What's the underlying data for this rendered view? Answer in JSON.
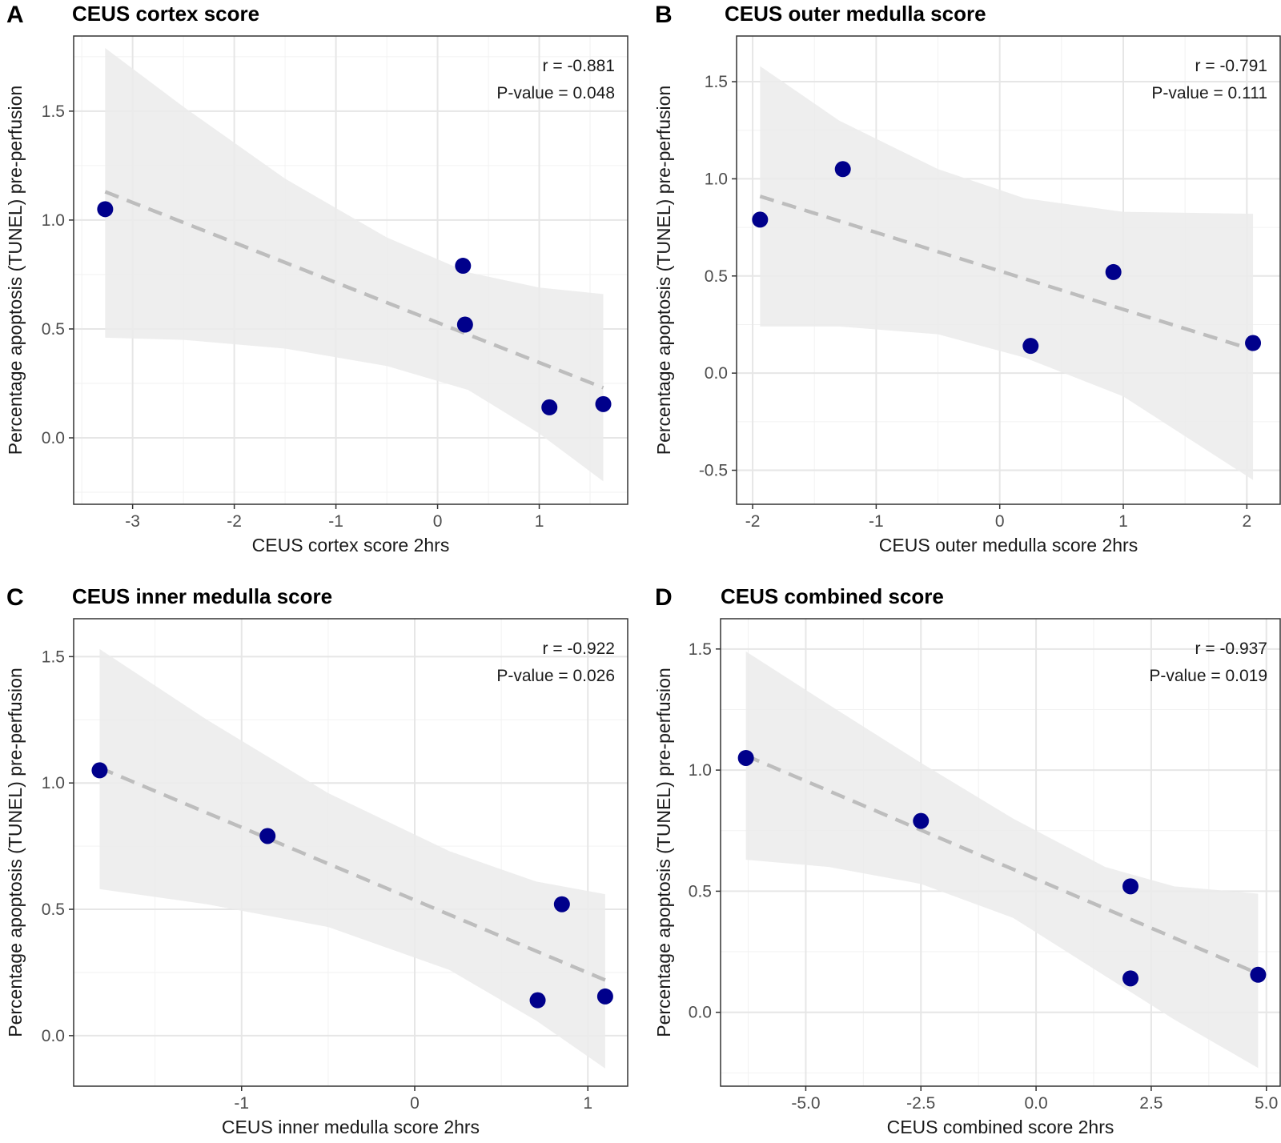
{
  "colors": {
    "point": "#00008b",
    "band": "#ebebeb",
    "trend": "#bdbdbd",
    "grid_major": "#e6e6e6",
    "grid_minor": "#f2f2f2",
    "frame": "#333333"
  },
  "chart_data": [
    {
      "type": "scatter",
      "letter": "A",
      "title": "CEUS cortex score",
      "xlabel": "CEUS cortex score 2hrs",
      "ylabel": "Percentage apoptosis (TUNEL) pre-perfusion",
      "xlim": [
        -3.58,
        1.87
      ],
      "ylim": [
        -0.305,
        1.845
      ],
      "xticks": [
        -3,
        -2,
        -1,
        0,
        1
      ],
      "xtick_labels": [
        "-3",
        "-2",
        "-1",
        "0",
        "1"
      ],
      "yticks": [
        0.0,
        0.5,
        1.0,
        1.5
      ],
      "ytick_labels": [
        "0.0",
        "0.5",
        "1.0",
        "1.5"
      ],
      "x": [
        -3.27,
        0.25,
        0.27,
        1.1,
        1.63
      ],
      "y": [
        1.05,
        0.79,
        0.52,
        0.14,
        0.155
      ],
      "trend": {
        "x": [
          -3.27,
          1.63
        ],
        "y": [
          1.13,
          0.23
        ]
      },
      "band_upper": [
        [
          -3.27,
          1.79
        ],
        [
          -2.5,
          1.52
        ],
        [
          -1.5,
          1.19
        ],
        [
          -0.5,
          0.92
        ],
        [
          0.3,
          0.76
        ],
        [
          1.0,
          0.69
        ],
        [
          1.63,
          0.66
        ]
      ],
      "band_lower": [
        [
          -3.27,
          0.46
        ],
        [
          -2.5,
          0.45
        ],
        [
          -1.5,
          0.41
        ],
        [
          -0.5,
          0.33
        ],
        [
          0.3,
          0.22
        ],
        [
          1.0,
          0.02
        ],
        [
          1.63,
          -0.2
        ]
      ],
      "annotation": [
        "r = -0.881",
        "P-value = 0.048"
      ],
      "grid": true
    },
    {
      "type": "scatter",
      "letter": "B",
      "title": "CEUS outer medulla score",
      "xlabel": "CEUS outer medulla score 2hrs",
      "ylabel": "Percentage apoptosis (TUNEL) pre-perfusion",
      "xlim": [
        -2.13,
        2.27
      ],
      "ylim": [
        -0.675,
        1.735
      ],
      "xticks": [
        -2,
        -1,
        0,
        1,
        2
      ],
      "xtick_labels": [
        "-2",
        "-1",
        "0",
        "1",
        "2"
      ],
      "yticks": [
        -0.5,
        0.0,
        0.5,
        1.0,
        1.5
      ],
      "ytick_labels": [
        "-0.5",
        "0.0",
        "0.5",
        "1.0",
        "1.5"
      ],
      "x": [
        -1.94,
        -1.27,
        0.25,
        0.92,
        2.05
      ],
      "y": [
        0.79,
        1.05,
        0.14,
        0.52,
        0.155
      ],
      "trend": {
        "x": [
          -1.94,
          2.05
        ],
        "y": [
          0.91,
          0.12
        ]
      },
      "band_upper": [
        [
          -1.94,
          1.58
        ],
        [
          -1.3,
          1.3
        ],
        [
          -0.5,
          1.05
        ],
        [
          0.2,
          0.9
        ],
        [
          1.0,
          0.83
        ],
        [
          2.05,
          0.82
        ]
      ],
      "band_lower": [
        [
          -1.94,
          0.24
        ],
        [
          -1.3,
          0.24
        ],
        [
          -0.5,
          0.2
        ],
        [
          0.2,
          0.08
        ],
        [
          1.0,
          -0.12
        ],
        [
          2.05,
          -0.55
        ]
      ],
      "annotation": [
        "r = -0.791",
        "P-value = 0.111"
      ],
      "grid": true
    },
    {
      "type": "scatter",
      "letter": "C",
      "title": "CEUS inner medulla score",
      "xlabel": "CEUS inner medulla score 2hrs",
      "ylabel": "Percentage apoptosis (TUNEL) pre-perfusion",
      "xlim": [
        -1.97,
        1.23
      ],
      "ylim": [
        -0.2,
        1.65
      ],
      "xticks": [
        -1,
        0,
        1
      ],
      "xtick_labels": [
        "-1",
        "0",
        "1"
      ],
      "yticks": [
        0.0,
        0.5,
        1.0,
        1.5
      ],
      "ytick_labels": [
        "0.0",
        "0.5",
        "1.0",
        "1.5"
      ],
      "x": [
        -1.82,
        -0.85,
        0.71,
        0.85,
        1.1
      ],
      "y": [
        1.05,
        0.79,
        0.14,
        0.52,
        0.155
      ],
      "trend": {
        "x": [
          -1.82,
          1.1
        ],
        "y": [
          1.06,
          0.22
        ]
      },
      "band_upper": [
        [
          -1.82,
          1.53
        ],
        [
          -1.2,
          1.25
        ],
        [
          -0.5,
          0.96
        ],
        [
          0.2,
          0.73
        ],
        [
          0.7,
          0.61
        ],
        [
          1.1,
          0.56
        ]
      ],
      "band_lower": [
        [
          -1.82,
          0.58
        ],
        [
          -1.2,
          0.52
        ],
        [
          -0.5,
          0.43
        ],
        [
          0.2,
          0.26
        ],
        [
          0.7,
          0.06
        ],
        [
          1.1,
          -0.13
        ]
      ],
      "annotation": [
        "r = -0.922",
        "P-value = 0.026"
      ],
      "grid": true
    },
    {
      "type": "scatter",
      "letter": "D",
      "title": "CEUS combined score",
      "xlabel": "CEUS combined score 2hrs",
      "ylabel": "Percentage apoptosis (TUNEL) pre-perfusion",
      "xlim": [
        -6.85,
        5.3
      ],
      "ylim": [
        -0.305,
        1.625
      ],
      "xticks": [
        -5.0,
        -2.5,
        0.0,
        2.5,
        5.0
      ],
      "xtick_labels": [
        "-5.0",
        "-2.5",
        "0.0",
        "2.5",
        "5.0"
      ],
      "yticks": [
        0.0,
        0.5,
        1.0,
        1.5
      ],
      "ytick_labels": [
        "0.0",
        "0.5",
        "1.0",
        "1.5"
      ],
      "x": [
        -6.3,
        -2.5,
        2.05,
        2.05,
        4.82
      ],
      "y": [
        1.05,
        0.79,
        0.52,
        0.14,
        0.155
      ],
      "trend": {
        "x": [
          -6.3,
          4.82
        ],
        "y": [
          1.06,
          0.16
        ]
      },
      "band_upper": [
        [
          -6.3,
          1.49
        ],
        [
          -4.5,
          1.27
        ],
        [
          -2.5,
          1.03
        ],
        [
          -0.5,
          0.8
        ],
        [
          1.5,
          0.6
        ],
        [
          3.0,
          0.52
        ],
        [
          4.82,
          0.49
        ]
      ],
      "band_lower": [
        [
          -6.3,
          0.63
        ],
        [
          -4.5,
          0.6
        ],
        [
          -2.5,
          0.53
        ],
        [
          -0.5,
          0.39
        ],
        [
          1.5,
          0.15
        ],
        [
          3.0,
          -0.03
        ],
        [
          4.82,
          -0.23
        ]
      ],
      "annotation": [
        "r = -0.937",
        "P-value = 0.019"
      ],
      "grid": true
    }
  ]
}
